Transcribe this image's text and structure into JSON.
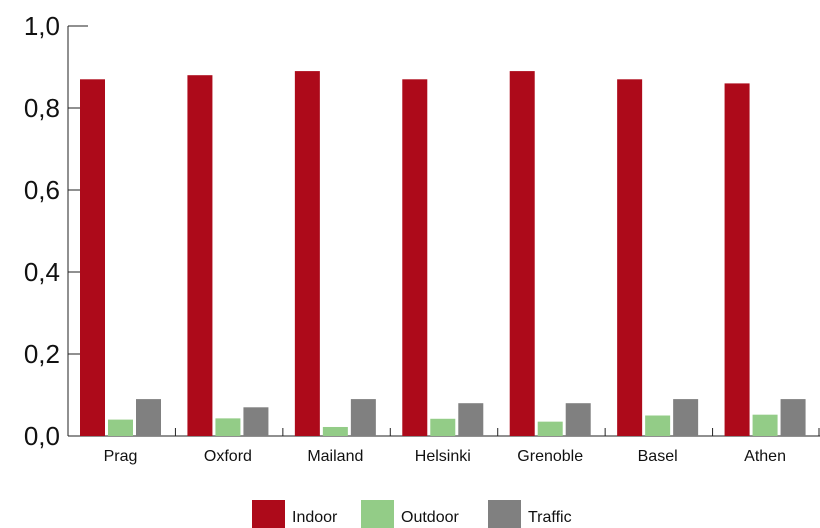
{
  "chart_data": {
    "type": "bar",
    "categories": [
      "Prag",
      "Oxford",
      "Mailand",
      "Helsinki",
      "Grenoble",
      "Basel",
      "Athen"
    ],
    "series": [
      {
        "name": "Indoor",
        "color": "#ad0a1a",
        "values": [
          0.87,
          0.88,
          0.89,
          0.87,
          0.89,
          0.87,
          0.86
        ]
      },
      {
        "name": "Outdoor",
        "color": "#93cc87",
        "values": [
          0.04,
          0.043,
          0.022,
          0.042,
          0.035,
          0.05,
          0.052
        ]
      },
      {
        "name": "Traffic",
        "color": "#808080",
        "values": [
          0.09,
          0.07,
          0.09,
          0.08,
          0.08,
          0.09,
          0.09
        ]
      }
    ],
    "ylim": [
      0,
      1.0
    ],
    "yticks": [
      "0,0",
      "0,2",
      "0,4",
      "0,6",
      "0,8",
      "1,0"
    ],
    "legend_position": "bottom-center",
    "grid": false
  }
}
